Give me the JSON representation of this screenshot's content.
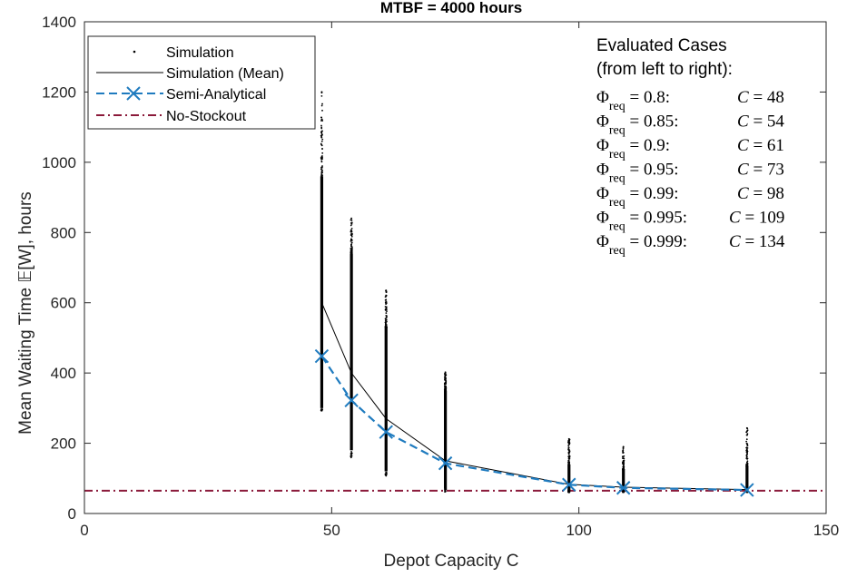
{
  "chart_data": {
    "type": "scatter",
    "title": "MTBF = 4000 hours",
    "xlabel": "Depot Capacity C",
    "ylabel": "Mean Waiting Time 𝔼[W], hours",
    "xlim": [
      0,
      150
    ],
    "ylim": [
      0,
      1400
    ],
    "xticks": [
      0,
      50,
      100,
      150
    ],
    "yticks": [
      0,
      200,
      400,
      600,
      800,
      1000,
      1200,
      1400
    ],
    "grid": false,
    "legend_position": "top-left",
    "legend": [
      "Simulation",
      "Simulation (Mean)",
      "Semi-Analytical",
      "No-Stockout"
    ],
    "series": [
      {
        "name": "Simulation",
        "style": "points",
        "color": "#000000",
        "ranges": [
          {
            "x": 48,
            "ymin": 290,
            "ymax": 1200,
            "dense_min": 300,
            "dense_max": 960
          },
          {
            "x": 54,
            "ymin": 158,
            "ymax": 840,
            "dense_min": 180,
            "dense_max": 740
          },
          {
            "x": 61,
            "ymin": 105,
            "ymax": 635,
            "dense_min": 120,
            "dense_max": 530
          },
          {
            "x": 73,
            "ymin": 60,
            "ymax": 402,
            "dense_min": 70,
            "dense_max": 350
          },
          {
            "x": 98,
            "ymin": 60,
            "ymax": 212,
            "dense_min": 62,
            "dense_max": 140
          },
          {
            "x": 109,
            "ymin": 60,
            "ymax": 190,
            "dense_min": 62,
            "dense_max": 125
          },
          {
            "x": 134,
            "ymin": 60,
            "ymax": 243,
            "dense_min": 62,
            "dense_max": 135
          }
        ]
      },
      {
        "name": "Simulation (Mean)",
        "style": "solid-line",
        "color": "#000000",
        "x": [
          48,
          54,
          61,
          73,
          98,
          109,
          134
        ],
        "y": [
          600,
          400,
          270,
          150,
          83,
          75,
          68
        ]
      },
      {
        "name": "Semi-Analytical",
        "style": "dashed-line-x-markers",
        "color": "#1f7bbf",
        "x": [
          48,
          54,
          61,
          73,
          98,
          109,
          134
        ],
        "y": [
          448,
          322,
          232,
          143,
          82,
          73,
          67
        ]
      },
      {
        "name": "No-Stockout",
        "style": "dash-dot-line",
        "color": "#8b1a3a",
        "x": [
          0,
          150
        ],
        "y": [
          65,
          65
        ]
      }
    ],
    "annotation": {
      "header": [
        "Evaluated Cases",
        "(from left to right):"
      ],
      "cases": [
        {
          "phi": "0.8",
          "c": "48"
        },
        {
          "phi": "0.85",
          "c": "54"
        },
        {
          "phi": "0.9",
          "c": "61"
        },
        {
          "phi": "0.95",
          "c": "73"
        },
        {
          "phi": "0.99",
          "c": "98"
        },
        {
          "phi": "0.995",
          "c": "109"
        },
        {
          "phi": "0.999",
          "c": "134"
        }
      ]
    }
  }
}
